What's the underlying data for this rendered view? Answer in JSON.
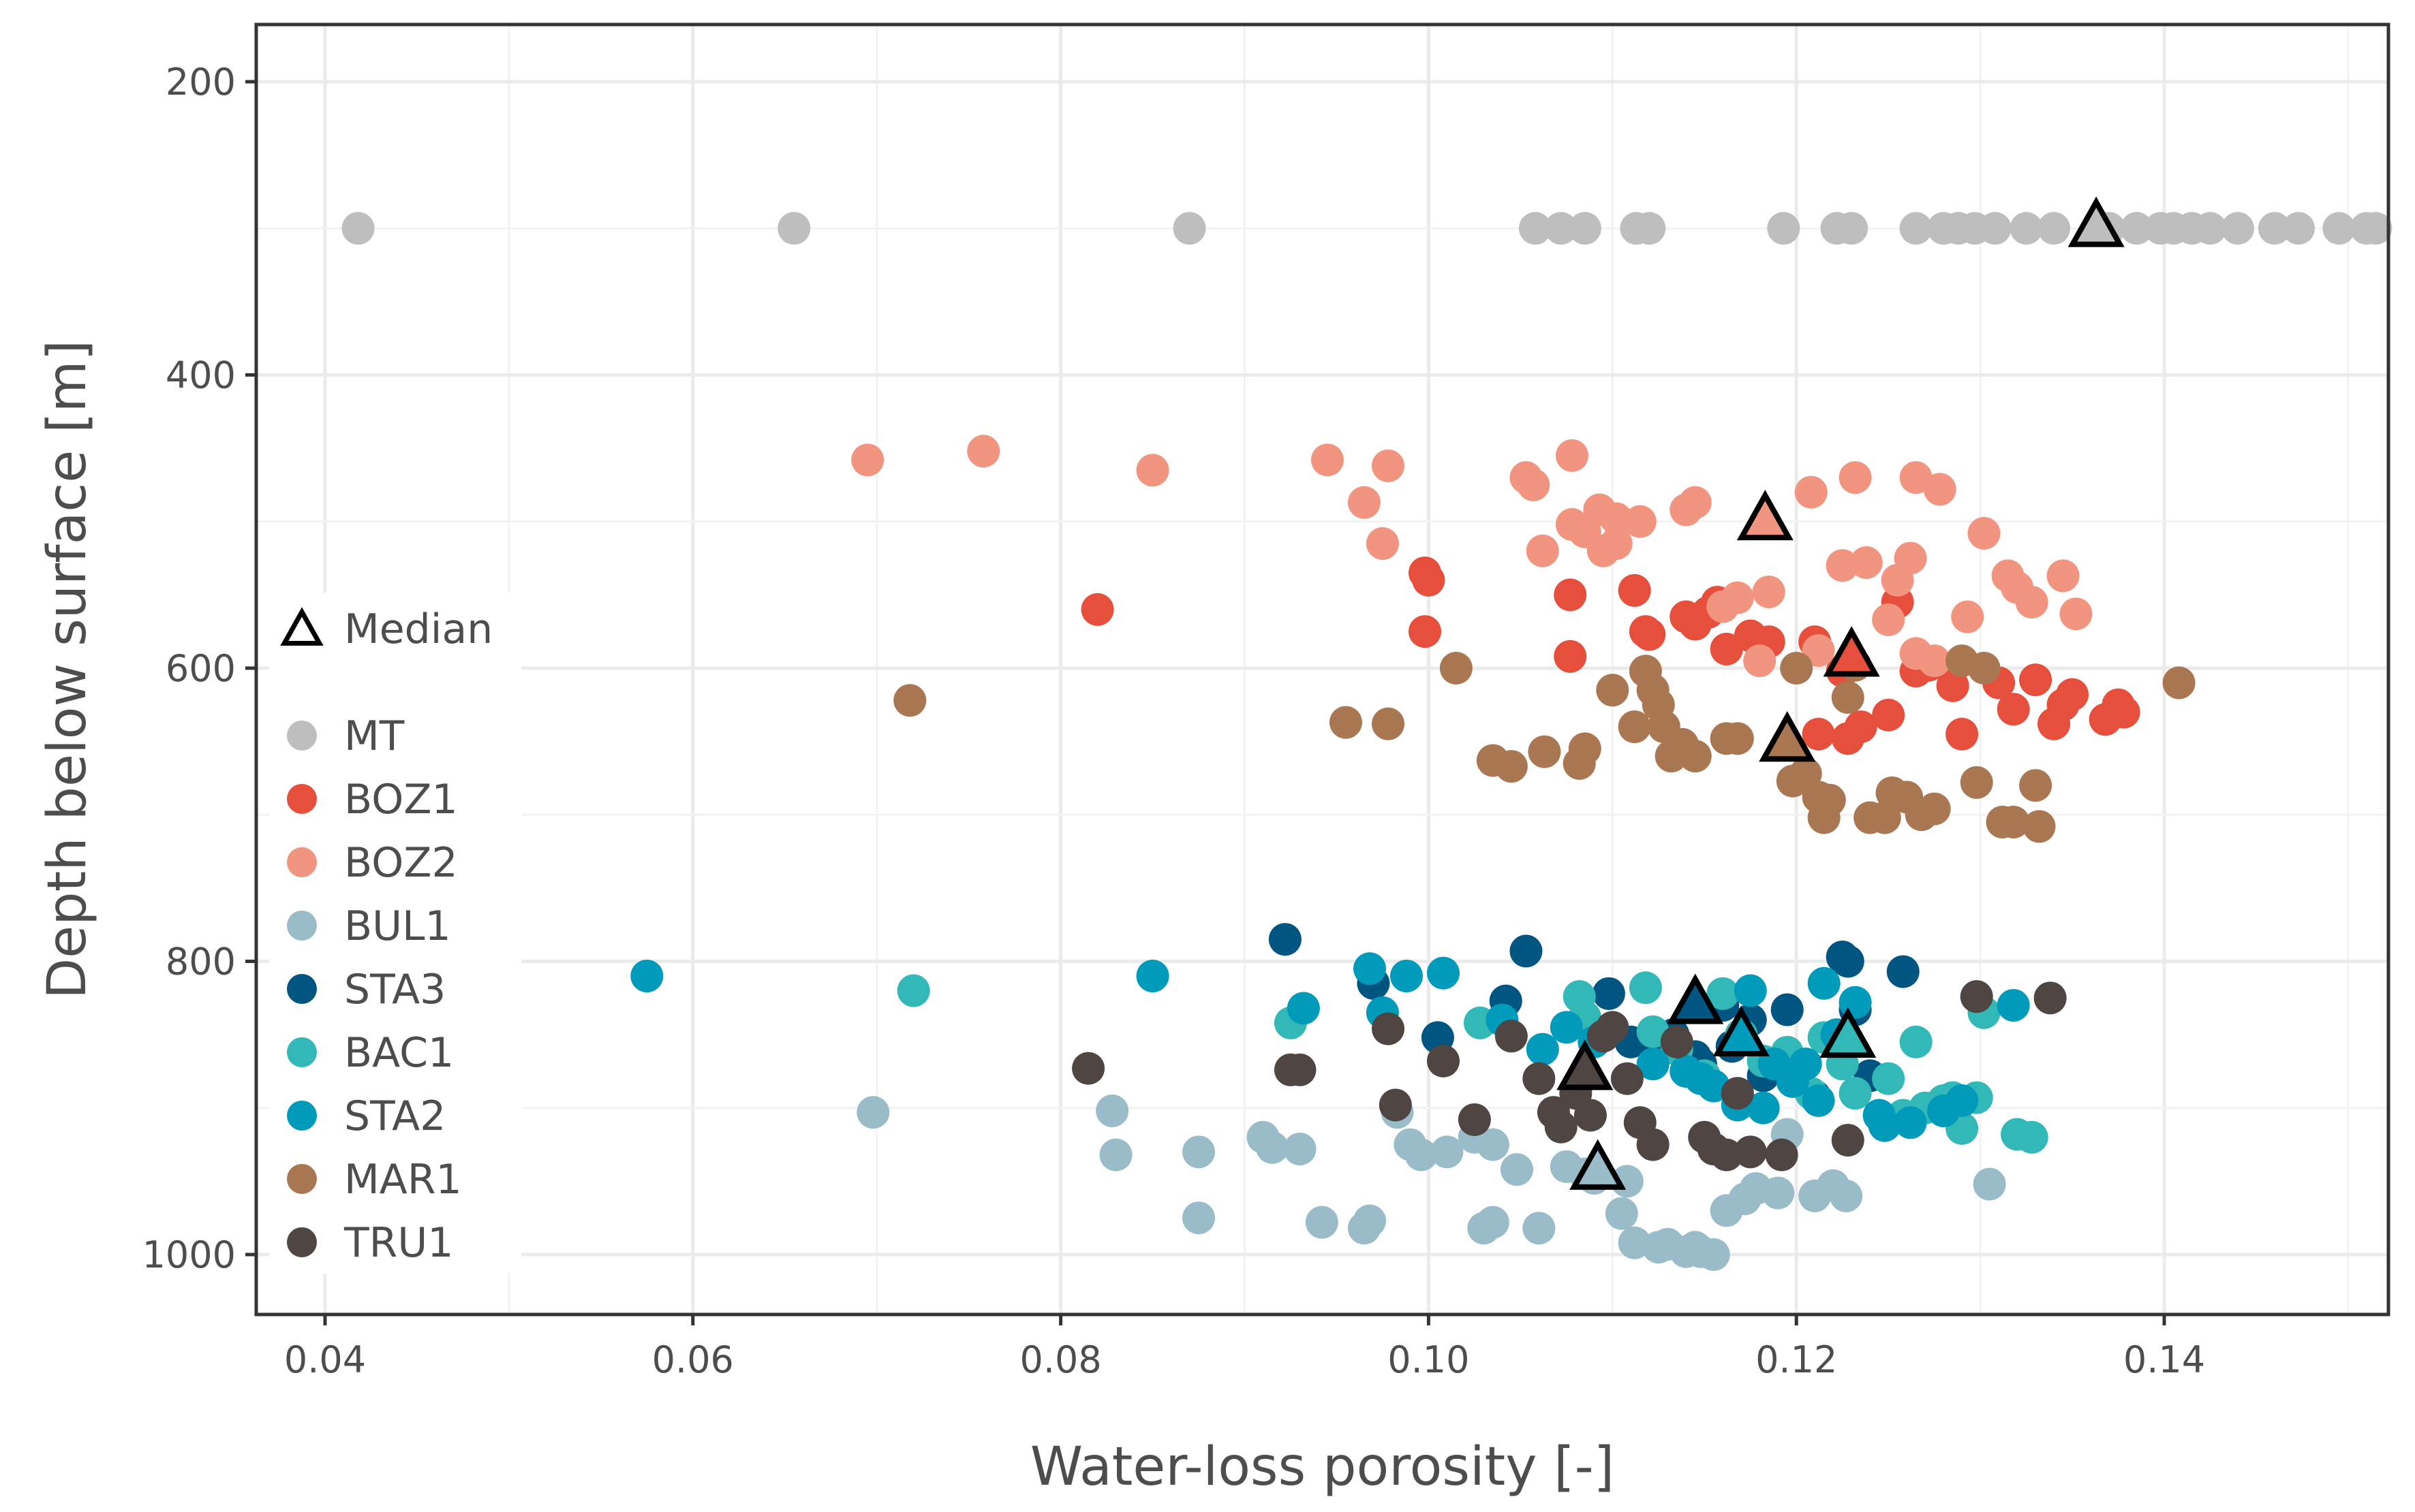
{
  "chart_data": {
    "type": "scatter",
    "title": "",
    "xlabel": "Water-loss porosity [-]",
    "ylabel": "Depth below surface [m]",
    "xlim": [
      0.0365,
      0.1515
    ],
    "ylim": [
      1040,
      150
    ],
    "y_reversed": true,
    "grid": true,
    "x_ticks": [
      0.04,
      0.06,
      0.08,
      0.1,
      0.12,
      0.14
    ],
    "x_tick_labels": [
      "0.04",
      "0.06",
      "0.08",
      "0.10",
      "0.12",
      "0.14"
    ],
    "y_ticks": [
      200,
      400,
      600,
      800,
      1000
    ],
    "y_tick_labels": [
      "200",
      "400",
      "600",
      "800",
      "1000"
    ],
    "legend": {
      "placement": "left-inside",
      "median_label": "Median",
      "entries": [
        "MT",
        "BOZ1",
        "BOZ2",
        "BUL1",
        "STA3",
        "BAC1",
        "STA2",
        "MAR1",
        "TRU1"
      ]
    },
    "series": [
      {
        "name": "MT",
        "color": "#bebebe",
        "x": [
          0.0418,
          0.0655,
          0.087,
          0.1058,
          0.1072,
          0.1085,
          0.1113,
          0.112,
          0.1193,
          0.1222,
          0.123,
          0.1265,
          0.128,
          0.1288,
          0.1297,
          0.1308,
          0.1325,
          0.134,
          0.137,
          0.1385,
          0.1398,
          0.1405,
          0.1415,
          0.1425,
          0.144,
          0.146,
          0.1473,
          0.1495,
          0.151,
          0.1515
        ],
        "y": [
          300,
          300,
          300,
          300,
          300,
          300,
          300,
          300,
          300,
          300,
          300,
          300,
          300,
          300,
          300,
          300,
          300,
          300,
          300,
          300,
          300,
          300,
          300,
          300,
          300,
          300,
          300,
          300,
          300,
          300
        ],
        "median": [
          0.1363,
          300
        ]
      },
      {
        "name": "BOZ1",
        "color": "#e64f3c",
        "x": [
          0.082,
          0.0998,
          0.1,
          0.0998,
          0.1077,
          0.1077,
          0.1112,
          0.1118,
          0.112,
          0.114,
          0.1145,
          0.1152,
          0.1157,
          0.1162,
          0.1175,
          0.1185,
          0.121,
          0.1212,
          0.1225,
          0.1228,
          0.1235,
          0.125,
          0.1255,
          0.1265,
          0.1272,
          0.1285,
          0.129,
          0.131,
          0.1318,
          0.133,
          0.134,
          0.1345,
          0.135,
          0.1368,
          0.1375,
          0.1378
        ],
        "y": [
          560,
          535,
          540,
          575,
          550,
          592,
          547,
          575,
          577,
          565,
          570,
          562,
          555,
          587,
          578,
          582,
          582,
          645,
          602,
          648,
          640,
          632,
          555,
          602,
          598,
          612,
          645,
          610,
          628,
          608,
          638,
          625,
          618,
          635,
          625,
          630
        ],
        "median": [
          0.123,
          593
        ]
      },
      {
        "name": "BOZ2",
        "color": "#f29580",
        "x": [
          0.0695,
          0.0758,
          0.085,
          0.0945,
          0.0978,
          0.0965,
          0.0975,
          0.1053,
          0.1057,
          0.1062,
          0.1078,
          0.1078,
          0.1085,
          0.1095,
          0.1093,
          0.1102,
          0.1102,
          0.1115,
          0.114,
          0.1145,
          0.116,
          0.1168,
          0.118,
          0.1185,
          0.1208,
          0.1212,
          0.1225,
          0.1232,
          0.1238,
          0.125,
          0.1255,
          0.1262,
          0.1265,
          0.1265,
          0.1275,
          0.1278,
          0.1293,
          0.1302,
          0.1315,
          0.132,
          0.1328,
          0.1345,
          0.1352
        ],
        "y": [
          458,
          452,
          465,
          458,
          462,
          487,
          515,
          470,
          475,
          520,
          455,
          502,
          507,
          520,
          492,
          498,
          515,
          500,
          492,
          487,
          558,
          552,
          595,
          548,
          480,
          588,
          530,
          470,
          528,
          567,
          540,
          525,
          470,
          590,
          595,
          478,
          565,
          508,
          537,
          545,
          555,
          537,
          563
        ],
        "median": [
          0.1183,
          500
        ]
      },
      {
        "name": "BUL1",
        "color": "#99bcc8",
        "x": [
          0.0698,
          0.0828,
          0.083,
          0.0875,
          0.0875,
          0.091,
          0.0915,
          0.093,
          0.0942,
          0.0965,
          0.0968,
          0.0983,
          0.099,
          0.0996,
          0.101,
          0.1025,
          0.103,
          0.1035,
          0.1035,
          0.1048,
          0.106,
          0.1075,
          0.1085,
          0.109,
          0.1105,
          0.1108,
          0.1112,
          0.1125,
          0.113,
          0.114,
          0.1145,
          0.1148,
          0.1155,
          0.1162,
          0.1172,
          0.1178,
          0.119,
          0.1195,
          0.121,
          0.122,
          0.1227,
          0.1305
        ],
        "y": [
          903,
          902,
          932,
          930,
          975,
          920,
          927,
          928,
          978,
          982,
          977,
          903,
          925,
          932,
          930,
          920,
          982,
          978,
          925,
          942,
          982,
          940,
          945,
          948,
          972,
          950,
          992,
          995,
          993,
          998,
          995,
          998,
          1000,
          970,
          962,
          955,
          958,
          918,
          960,
          953,
          960,
          952
        ],
        "median": [
          0.1092,
          943
        ]
      },
      {
        "name": "STA3",
        "color": "#005680",
        "x": [
          0.0922,
          0.097,
          0.1005,
          0.1042,
          0.1053,
          0.1098,
          0.111,
          0.1125,
          0.1133,
          0.1145,
          0.1148,
          0.116,
          0.1165,
          0.1175,
          0.1182,
          0.1188,
          0.1195,
          0.121,
          0.1225,
          0.1228,
          0.1232,
          0.124,
          0.1258
        ],
        "y": [
          785,
          815,
          852,
          827,
          793,
          822,
          855,
          862,
          850,
          865,
          870,
          830,
          858,
          840,
          878,
          872,
          833,
          892,
          797,
          800,
          833,
          878,
          807
        ],
        "median": [
          0.1145,
          830
        ]
      },
      {
        "name": "BAC1",
        "color": "#33b8b8",
        "x": [
          0.072,
          0.0925,
          0.1028,
          0.1082,
          0.1085,
          0.1118,
          0.1122,
          0.1135,
          0.115,
          0.116,
          0.117,
          0.1182,
          0.1195,
          0.1208,
          0.1215,
          0.1225,
          0.1232,
          0.125,
          0.1258,
          0.1265,
          0.127,
          0.128,
          0.1285,
          0.129,
          0.1298,
          0.1302,
          0.132,
          0.1328
        ],
        "y": [
          820,
          842,
          842,
          824,
          838,
          818,
          848,
          860,
          878,
          822,
          850,
          868,
          862,
          890,
          852,
          870,
          890,
          880,
          905,
          855,
          900,
          895,
          893,
          914,
          893,
          835,
          918,
          920
        ],
        "median": [
          0.1228,
          853
        ]
      },
      {
        "name": "STA2",
        "color": "#009abb",
        "x": [
          0.0575,
          0.085,
          0.0932,
          0.0968,
          0.0975,
          0.0988,
          0.1008,
          0.104,
          0.1062,
          0.1075,
          0.109,
          0.1122,
          0.114,
          0.1148,
          0.1155,
          0.1168,
          0.1175,
          0.1182,
          0.1188,
          0.1198,
          0.1205,
          0.1212,
          0.1215,
          0.1222,
          0.1232,
          0.1245,
          0.1248,
          0.1262,
          0.128,
          0.129,
          0.1318
        ],
        "y": [
          810,
          810,
          832,
          805,
          835,
          810,
          808,
          840,
          860,
          845,
          855,
          870,
          875,
          880,
          885,
          898,
          820,
          900,
          870,
          882,
          870,
          895,
          815,
          850,
          828,
          905,
          912,
          910,
          902,
          895,
          830
        ],
        "median": [
          0.117,
          852
        ]
      },
      {
        "name": "MAR1",
        "color": "#a97752",
        "x": [
          0.0718,
          0.0955,
          0.0978,
          0.1015,
          0.1035,
          0.1045,
          0.1063,
          0.1082,
          0.1085,
          0.11,
          0.1112,
          0.1118,
          0.1122,
          0.1125,
          0.1128,
          0.1132,
          0.1138,
          0.1145,
          0.1162,
          0.1168,
          0.1198,
          0.12,
          0.1205,
          0.1212,
          0.1215,
          0.1218,
          0.1228,
          0.1232,
          0.124,
          0.1248,
          0.1252,
          0.126,
          0.1268,
          0.1275,
          0.129,
          0.1298,
          0.1302,
          0.1312,
          0.1318,
          0.133,
          0.1332,
          0.1408
        ],
        "y": [
          622,
          637,
          638,
          600,
          663,
          667,
          657,
          665,
          655,
          615,
          640,
          602,
          615,
          625,
          640,
          660,
          652,
          660,
          648,
          648,
          677,
          600,
          672,
          688,
          702,
          690,
          620,
          598,
          702,
          702,
          685,
          688,
          700,
          696,
          595,
          678,
          600,
          705,
          705,
          680,
          708,
          610
        ],
        "median": [
          0.1195,
          651
        ]
      },
      {
        "name": "TRU1",
        "color": "#4f4542",
        "x": [
          0.0815,
          0.0925,
          0.093,
          0.0978,
          0.0982,
          0.1008,
          0.1025,
          0.1045,
          0.106,
          0.1068,
          0.1072,
          0.108,
          0.1085,
          0.1088,
          0.1095,
          0.11,
          0.1108,
          0.1115,
          0.1122,
          0.1135,
          0.115,
          0.1155,
          0.1162,
          0.1168,
          0.1175,
          0.1192,
          0.1228,
          0.1298,
          0.1338
        ],
        "y": [
          873,
          874,
          874,
          846,
          898,
          868,
          908,
          851,
          880,
          903,
          913,
          890,
          878,
          905,
          851,
          845,
          880,
          910,
          925,
          855,
          920,
          928,
          932,
          890,
          930,
          932,
          922,
          824,
          825
        ],
        "median": [
          0.1085,
          875
        ]
      }
    ]
  }
}
